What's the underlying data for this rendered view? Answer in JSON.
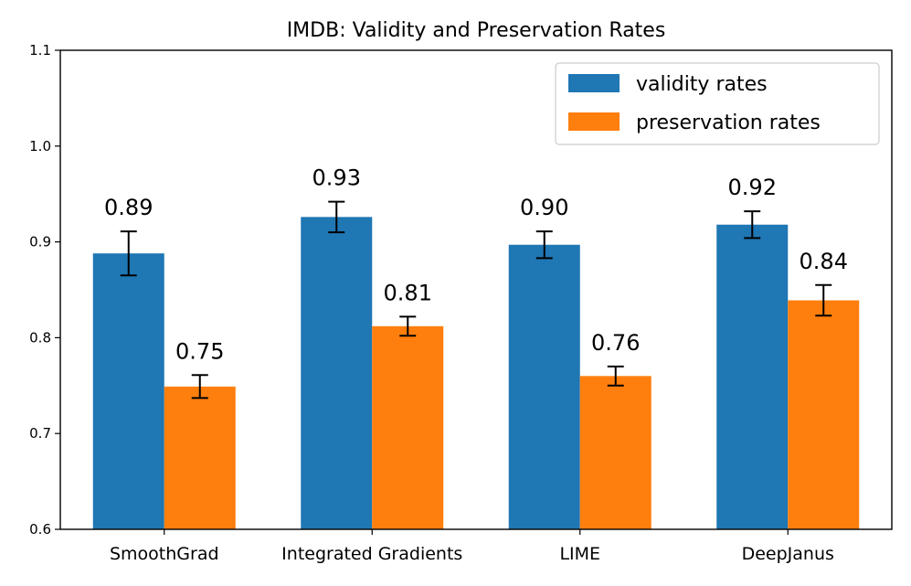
{
  "chart_data": {
    "type": "bar",
    "title": "IMDB: Validity and Preservation Rates",
    "xlabel": "",
    "ylabel": "",
    "ylim": [
      0.6,
      1.1
    ],
    "yticks": [
      "0.6",
      "0.7",
      "0.8",
      "0.9",
      "1.0",
      "1.1"
    ],
    "categories": [
      "SmoothGrad",
      "Integrated Gradients",
      "LIME",
      "DeepJanus"
    ],
    "series": [
      {
        "name": "validity rates",
        "color": "#1f77b4",
        "values": [
          0.888,
          0.926,
          0.897,
          0.918
        ],
        "errors": [
          0.023,
          0.016,
          0.014,
          0.014
        ],
        "labels": [
          "0.89",
          "0.93",
          "0.90",
          "0.92"
        ]
      },
      {
        "name": "preservation rates",
        "color": "#ff7f0e",
        "values": [
          0.749,
          0.812,
          0.76,
          0.839
        ],
        "errors": [
          0.012,
          0.01,
          0.01,
          0.016
        ],
        "labels": [
          "0.75",
          "0.81",
          "0.76",
          "0.84"
        ]
      }
    ],
    "legend_position": "top-right",
    "grid": false
  }
}
